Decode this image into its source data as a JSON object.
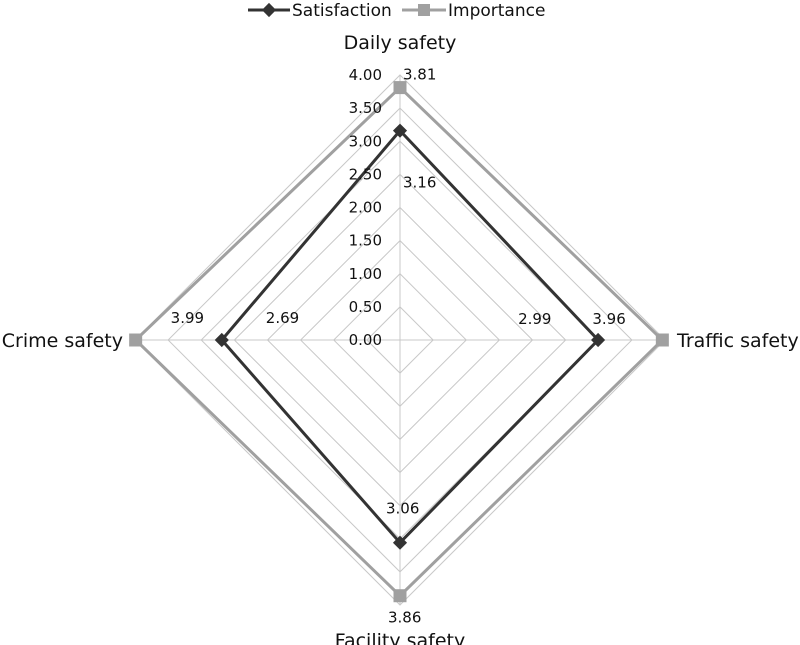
{
  "chart_data": {
    "type": "radar",
    "title": "",
    "categories": [
      "Daily safety",
      "Traffic safety",
      "Facility safety",
      "Crime safety"
    ],
    "series": [
      {
        "name": "Satisfaction",
        "values": [
          3.16,
          2.99,
          3.06,
          2.69
        ],
        "color": "#333333",
        "marker": "diamond",
        "value_labels": [
          "3.16",
          "2.99",
          "3.06",
          "2.69"
        ]
      },
      {
        "name": "Importance",
        "values": [
          3.81,
          3.96,
          3.86,
          3.99
        ],
        "color": "#a0a0a0",
        "marker": "square",
        "value_labels": [
          "3.81",
          "3.96",
          "3.86",
          "3.99"
        ]
      }
    ],
    "range": [
      0,
      4
    ],
    "ticks": [
      "0.00",
      "0.50",
      "1.00",
      "1.50",
      "2.00",
      "2.50",
      "3.00",
      "3.50",
      "4.00"
    ],
    "grid": true,
    "legend_position": "top"
  }
}
